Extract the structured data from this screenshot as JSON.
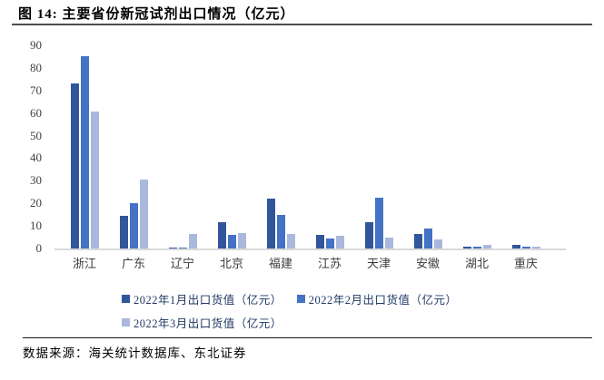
{
  "figure": {
    "title": "图 14: 主要省份新冠试剂出口情况（亿元）",
    "source": "数据来源：海关统计数据库、东北证券"
  },
  "colors": {
    "series1": "#31569b",
    "series2": "#4472c4",
    "series3": "#aab8dc",
    "axis_line": "#d9d9d9",
    "tick_text": "#3f3f3f",
    "legend_text": "#1f3864",
    "title_rule": "#4d4d4d"
  },
  "chart_data": {
    "type": "bar",
    "title": "主要省份新冠试剂出口情况（亿元）",
    "categories": [
      "浙江",
      "广东",
      "辽宁",
      "北京",
      "福建",
      "江苏",
      "天津",
      "安徽",
      "湖北",
      "重庆"
    ],
    "series": [
      {
        "name": "2022年1月出口货值（亿元）",
        "color": "#31569b",
        "values": [
          73,
          14.5,
          0.2,
          11.5,
          22,
          6,
          11.5,
          6.5,
          1,
          1.5
        ]
      },
      {
        "name": "2022年2月出口货值（亿元）",
        "color": "#4472c4",
        "values": [
          85,
          20,
          0.3,
          6,
          14.7,
          4.5,
          22.5,
          9,
          1,
          1
        ]
      },
      {
        "name": "2022年3月出口货值（亿元）",
        "color": "#aab8dc",
        "values": [
          60.5,
          30.5,
          6.5,
          6.8,
          6.3,
          5.8,
          4.8,
          4.2,
          1.8,
          0.7
        ]
      }
    ],
    "xlabel": "",
    "ylabel": "",
    "ylim": [
      0,
      90
    ],
    "ytick_step": 10,
    "grid": false,
    "legend_position": "bottom"
  }
}
